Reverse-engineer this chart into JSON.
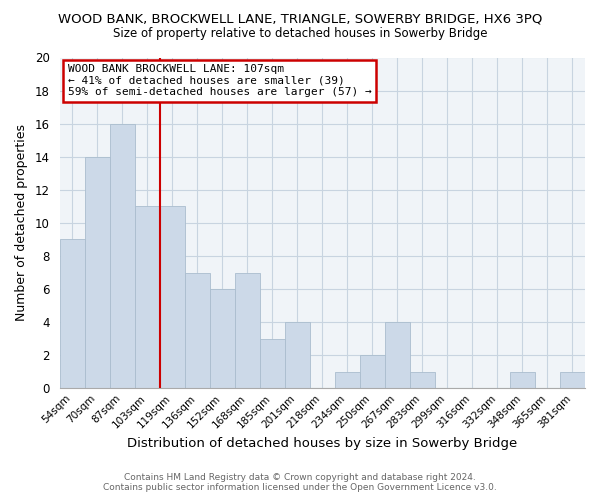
{
  "title": "WOOD BANK, BROCKWELL LANE, TRIANGLE, SOWERBY BRIDGE, HX6 3PQ",
  "subtitle": "Size of property relative to detached houses in Sowerby Bridge",
  "xlabel": "Distribution of detached houses by size in Sowerby Bridge",
  "ylabel": "Number of detached properties",
  "footer_line1": "Contains HM Land Registry data © Crown copyright and database right 2024.",
  "footer_line2": "Contains public sector information licensed under the Open Government Licence v3.0.",
  "bin_labels": [
    "54sqm",
    "70sqm",
    "87sqm",
    "103sqm",
    "119sqm",
    "136sqm",
    "152sqm",
    "168sqm",
    "185sqm",
    "201sqm",
    "218sqm",
    "234sqm",
    "250sqm",
    "267sqm",
    "283sqm",
    "299sqm",
    "316sqm",
    "332sqm",
    "348sqm",
    "365sqm",
    "381sqm"
  ],
  "bar_heights": [
    9,
    14,
    16,
    11,
    11,
    7,
    6,
    7,
    3,
    4,
    0,
    1,
    2,
    4,
    1,
    0,
    0,
    0,
    1,
    0,
    1
  ],
  "bar_color": "#ccd9e8",
  "bar_edge_color": "#aabdce",
  "vline_x_index": 3,
  "vline_color": "#cc0000",
  "ylim": [
    0,
    20
  ],
  "yticks": [
    0,
    2,
    4,
    6,
    8,
    10,
    12,
    14,
    16,
    18,
    20
  ],
  "annotation_title": "WOOD BANK BROCKWELL LANE: 107sqm",
  "annotation_line1": "← 41% of detached houses are smaller (39)",
  "annotation_line2": "59% of semi-detached houses are larger (57) →",
  "annotation_box_color": "#ffffff",
  "annotation_box_edge": "#cc0000",
  "grid_color": "#c8d4e0",
  "background_color": "#ffffff",
  "plot_bg_color": "#f0f4f8"
}
